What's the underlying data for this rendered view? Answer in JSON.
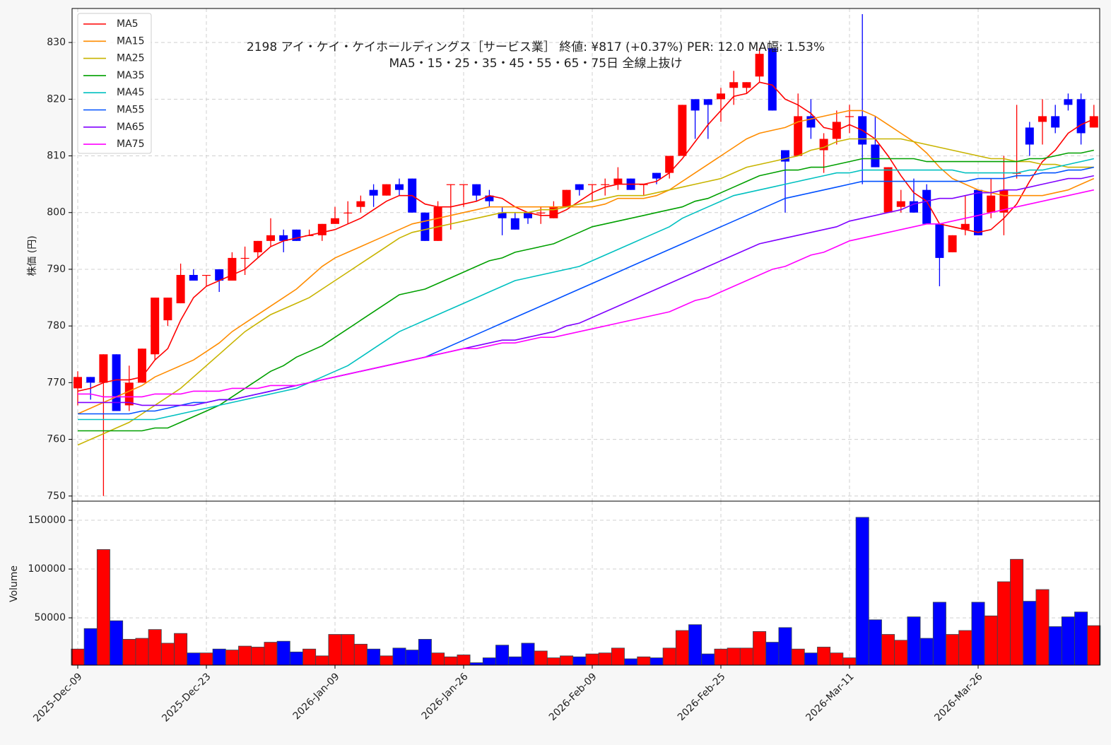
{
  "chart_data": [
    {
      "type": "candlestick",
      "title": "2198  アイ・ケイ・ケイホールディングス［サービス業］ 終値: ¥817 (+0.37%)  PER: 12.0  MA幅: 1.53%",
      "subtitle": "MA5・15・25・35・45・55・65・75日 全線上抜け",
      "y_label": "株価 (円)",
      "up_color": "#ff0000",
      "down_color": "#0000ff",
      "ylim": [
        749.1,
        836
      ],
      "yticks": [
        750,
        760,
        770,
        780,
        790,
        800,
        810,
        820,
        830
      ],
      "grid": true,
      "legend": "upper left",
      "open": [
        769,
        771,
        770,
        775,
        766,
        770,
        775,
        781,
        784,
        789,
        789,
        790,
        788,
        792,
        793,
        795,
        796,
        797,
        796,
        796,
        798,
        800,
        801,
        804,
        803,
        805,
        806,
        800,
        795,
        805,
        805,
        805,
        803,
        800,
        799,
        800,
        800,
        799,
        801,
        805,
        805,
        805,
        805,
        806,
        805,
        807,
        807,
        810,
        820,
        820,
        820,
        822,
        822,
        824,
        829,
        811,
        810,
        817,
        811,
        813,
        817,
        817,
        812,
        800,
        801,
        802,
        804,
        798,
        793,
        797,
        804,
        800,
        800,
        807,
        815,
        816,
        817,
        820,
        820,
        815
      ],
      "high": [
        772,
        771,
        775,
        775,
        773,
        776,
        785,
        785,
        791,
        790,
        789,
        790,
        793,
        794,
        795,
        799,
        797,
        797,
        797,
        798,
        801,
        802,
        803,
        805,
        805,
        806,
        806,
        800,
        802,
        805,
        805,
        805,
        804,
        801,
        800,
        800,
        801,
        802,
        804,
        805,
        805,
        806,
        808,
        806,
        805,
        807,
        810,
        819,
        820,
        820,
        822,
        825,
        823,
        829,
        829,
        811,
        821,
        820,
        814,
        818,
        819,
        835,
        817,
        808,
        804,
        806,
        805,
        798,
        796,
        803,
        804,
        806,
        810,
        819,
        816,
        820,
        819,
        821,
        821,
        819
      ],
      "low": [
        766,
        767,
        750,
        765,
        765,
        770,
        774,
        780,
        784,
        788,
        787,
        786,
        788,
        789,
        792,
        794,
        793,
        795,
        796,
        795,
        798,
        798,
        800,
        801,
        803,
        803,
        800,
        795,
        795,
        797,
        801,
        802,
        801,
        796,
        797,
        798,
        798,
        799,
        801,
        803,
        802,
        803,
        804,
        804,
        803,
        805,
        806,
        810,
        813,
        813,
        816,
        819,
        821,
        823,
        818,
        800,
        810,
        813,
        807,
        812,
        814,
        805,
        808,
        800,
        800,
        800,
        798,
        787,
        793,
        796,
        796,
        799,
        796,
        806,
        810,
        812,
        814,
        818,
        812,
        815
      ],
      "close": [
        771,
        770,
        775,
        765,
        770,
        776,
        785,
        785,
        789,
        788,
        789,
        788,
        792,
        792,
        795,
        796,
        795,
        795,
        796,
        798,
        799,
        800,
        802,
        803,
        805,
        804,
        800,
        795,
        801,
        805,
        805,
        803,
        802,
        799,
        797,
        799,
        800,
        801,
        804,
        804,
        805,
        805,
        806,
        804,
        805,
        806,
        810,
        819,
        818,
        819,
        821,
        823,
        823,
        828,
        818,
        809,
        817,
        815,
        813,
        816,
        817,
        812,
        808,
        808,
        802,
        800,
        798,
        792,
        796,
        798,
        796,
        803,
        804,
        807,
        812,
        817,
        815,
        819,
        814,
        817
      ],
      "series": [
        {
          "name": "MA5",
          "color": "#ff0000",
          "values": [
            768.5,
            769,
            770,
            770.5,
            770.5,
            771,
            774,
            776,
            781,
            785,
            787,
            788,
            789,
            790,
            792,
            794,
            795,
            795.5,
            796,
            796.5,
            797,
            798,
            799,
            800.5,
            802,
            803,
            803,
            801.5,
            801,
            801,
            801.5,
            802,
            803,
            802.5,
            801,
            800,
            799.5,
            799.5,
            800.5,
            802,
            803.5,
            804.5,
            805,
            805,
            805,
            805.5,
            807,
            809.5,
            812.5,
            815.5,
            818,
            820.5,
            821,
            823,
            822.5,
            820,
            819,
            817.5,
            815,
            814.5,
            815.5,
            814.5,
            813,
            810,
            806.5,
            803.5,
            802,
            798,
            797.5,
            797,
            796.5,
            797,
            799,
            801.5,
            805.5,
            809,
            811,
            814,
            815.5,
            816.5
          ]
        },
        {
          "name": "MA15",
          "color": "#ff8c00",
          "values": [
            764.5,
            765.5,
            766.5,
            767.5,
            768.5,
            769.5,
            771,
            772,
            773,
            774,
            775.5,
            777,
            779,
            780.5,
            782,
            783.5,
            785,
            786.5,
            788.5,
            790.5,
            792,
            793,
            794,
            795,
            796,
            797,
            798,
            798.5,
            799,
            799.5,
            800,
            800.5,
            801,
            801,
            801,
            801,
            801,
            801,
            801,
            801,
            801,
            801.5,
            802.5,
            802.5,
            802.5,
            803,
            804,
            805.5,
            807,
            808.5,
            810,
            811.5,
            813,
            814,
            814.5,
            815,
            816,
            816.5,
            817,
            817.5,
            818,
            818,
            817,
            815.5,
            814,
            812.5,
            810.5,
            808,
            806,
            805,
            804,
            803.5,
            803,
            803,
            803,
            803,
            803.5,
            804,
            805,
            806
          ]
        },
        {
          "name": "MA25",
          "color": "#c8b400",
          "values": [
            759,
            760,
            761,
            762,
            763,
            764.5,
            766,
            767.5,
            769,
            771,
            773,
            775,
            777,
            779,
            780.5,
            782,
            783,
            784,
            785,
            786.5,
            788,
            789.5,
            791,
            792.5,
            794,
            795.5,
            796.5,
            797,
            797.5,
            798,
            798.5,
            799,
            799.5,
            800,
            800,
            800,
            800.5,
            800.5,
            801,
            801.5,
            802,
            802.5,
            803,
            803,
            803,
            803.5,
            804,
            804.5,
            805,
            805.5,
            806,
            807,
            808,
            808.5,
            809,
            809.5,
            810,
            811,
            811.5,
            812.5,
            813,
            813,
            813,
            813,
            813,
            812.5,
            812,
            811.5,
            811,
            810.5,
            810,
            809.5,
            809.5,
            809,
            809,
            808.5,
            808.5,
            808,
            808,
            808
          ]
        },
        {
          "name": "MA35",
          "color": "#00a000",
          "values": [
            761.5,
            761.5,
            761.5,
            761.5,
            761.5,
            761.5,
            762,
            762,
            763,
            764,
            765,
            766,
            767.5,
            769,
            770.5,
            772,
            773,
            774.5,
            775.5,
            776.5,
            778,
            779.5,
            781,
            782.5,
            784,
            785.5,
            786,
            786.5,
            787.5,
            788.5,
            789.5,
            790.5,
            791.5,
            792,
            793,
            793.5,
            794,
            794.5,
            795.5,
            796.5,
            797.5,
            798,
            798.5,
            799,
            799.5,
            800,
            800.5,
            801,
            802,
            802.5,
            803.5,
            804.5,
            805.5,
            806.5,
            807,
            807.5,
            807.5,
            808,
            808,
            808.5,
            809,
            809.5,
            809.5,
            809.5,
            809.5,
            809.5,
            809,
            809,
            809,
            809,
            809,
            809,
            809,
            809,
            809.5,
            809.5,
            810,
            810.5,
            810.5,
            811
          ]
        },
        {
          "name": "MA45",
          "color": "#00c0c0",
          "values": [
            763.5,
            763.5,
            763.5,
            763.5,
            763.5,
            763.5,
            763.5,
            764,
            764.5,
            765,
            765.5,
            766,
            766.5,
            767,
            767.5,
            768,
            768.5,
            769,
            770,
            771,
            772,
            773,
            774.5,
            776,
            777.5,
            779,
            780,
            781,
            782,
            783,
            784,
            785,
            786,
            787,
            788,
            788.5,
            789,
            789.5,
            790,
            790.5,
            791.5,
            792.5,
            793.5,
            794.5,
            795.5,
            796.5,
            797.5,
            799,
            800,
            801,
            802,
            803,
            803.5,
            804,
            804.5,
            805,
            805.5,
            806,
            806.5,
            807,
            807,
            807.5,
            807.5,
            807.5,
            807.5,
            807.5,
            807.5,
            807.5,
            807.5,
            807,
            807,
            807,
            807,
            807,
            807.5,
            807.5,
            808,
            808.5,
            809,
            809.5
          ]
        },
        {
          "name": "MA55",
          "color": "#0050ff",
          "values": [
            764.5,
            764.5,
            764.5,
            764.5,
            764.5,
            765,
            765,
            765.5,
            766,
            766.5,
            766.5,
            767,
            767,
            767.5,
            768,
            768.5,
            769,
            769.5,
            770,
            770.5,
            771,
            771.5,
            772,
            772.5,
            773,
            773.5,
            774,
            774.5,
            775.5,
            776.5,
            777.5,
            778.5,
            779.5,
            780.5,
            781.5,
            782.5,
            783.5,
            784.5,
            785.5,
            786.5,
            787.5,
            788.5,
            789.5,
            790.5,
            791.5,
            792.5,
            793.5,
            794.5,
            795.5,
            796.5,
            797.5,
            798.5,
            799.5,
            800.5,
            801.5,
            802.5,
            803,
            803.5,
            804,
            804.5,
            805,
            805.5,
            805.5,
            805.5,
            805.5,
            805.5,
            805.5,
            805.5,
            805.5,
            805.5,
            806,
            806,
            806,
            806.5,
            806.5,
            807,
            807,
            807.5,
            807.5,
            808
          ]
        },
        {
          "name": "MA65",
          "color": "#8000ff",
          "values": [
            766.5,
            766.5,
            766.5,
            766.5,
            766.5,
            766,
            766,
            766,
            766,
            766,
            766.5,
            767,
            767,
            767.5,
            768,
            768.5,
            769,
            769.5,
            770,
            770.5,
            771,
            771.5,
            772,
            772.5,
            773,
            773.5,
            774,
            774.5,
            775,
            775.5,
            776,
            776.5,
            777,
            777.5,
            777.5,
            778,
            778.5,
            779,
            780,
            780.5,
            781.5,
            782.5,
            783.5,
            784.5,
            785.5,
            786.5,
            787.5,
            788.5,
            789.5,
            790.5,
            791.5,
            792.5,
            793.5,
            794.5,
            795,
            795.5,
            796,
            796.5,
            797,
            797.5,
            798.5,
            799,
            799.5,
            800,
            800.5,
            801.5,
            802,
            802.5,
            802.5,
            803,
            803.5,
            803.5,
            804,
            804,
            804.5,
            805,
            805.5,
            806,
            806,
            806.5
          ]
        },
        {
          "name": "MA75",
          "color": "#ff00ff",
          "values": [
            768,
            768,
            767.5,
            767.5,
            767.5,
            767.5,
            768,
            768,
            768,
            768.5,
            768.5,
            768.5,
            769,
            769,
            769,
            769.5,
            769.5,
            769.5,
            770,
            770.5,
            771,
            771.5,
            772,
            772.5,
            773,
            773.5,
            774,
            774.5,
            775,
            775.5,
            776,
            776,
            776.5,
            777,
            777,
            777.5,
            778,
            778,
            778.5,
            779,
            779.5,
            780,
            780.5,
            781,
            781.5,
            782,
            782.5,
            783.5,
            784.5,
            785,
            786,
            787,
            788,
            789,
            790,
            790.5,
            791.5,
            792.5,
            793,
            794,
            795,
            795.5,
            796,
            796.5,
            797,
            797.5,
            798,
            798,
            798.5,
            799,
            799.5,
            800,
            800.5,
            801,
            801.5,
            802,
            802.5,
            803,
            803.5,
            804
          ]
        }
      ]
    },
    {
      "type": "bar",
      "y_label": "Volume",
      "edge_color": "#37474f",
      "ylim": [
        1500,
        169600
      ],
      "yticks": [
        50000,
        100000,
        150000
      ],
      "grid": true,
      "categories": [
        "2025-Dec-09",
        null,
        null,
        null,
        null,
        null,
        null,
        null,
        null,
        null,
        "2025-Dec-23",
        null,
        null,
        null,
        null,
        null,
        null,
        null,
        null,
        null,
        "2026-Jan-09",
        null,
        null,
        null,
        null,
        null,
        null,
        null,
        null,
        null,
        "2026-Jan-26",
        null,
        null,
        null,
        null,
        null,
        null,
        null,
        null,
        null,
        "2026-Feb-09",
        null,
        null,
        null,
        null,
        null,
        null,
        null,
        null,
        null,
        "2026-Feb-25",
        null,
        null,
        null,
        null,
        null,
        null,
        null,
        null,
        null,
        "2026-Mar-11",
        null,
        null,
        null,
        null,
        null,
        null,
        null,
        null,
        null,
        "2026-Mar-26",
        null,
        null,
        null,
        null,
        null,
        null,
        null,
        null,
        null
      ],
      "values": [
        18000,
        39000,
        120000,
        47000,
        28000,
        29000,
        38000,
        24000,
        34000,
        14000,
        14000,
        18000,
        17000,
        21000,
        20000,
        25000,
        26000,
        15000,
        18000,
        11000,
        33000,
        33000,
        23000,
        18000,
        11000,
        19000,
        17000,
        28000,
        14000,
        10000,
        12000,
        4000,
        9000,
        22000,
        10000,
        24000,
        16000,
        9000,
        11000,
        10000,
        13000,
        14000,
        19000,
        8000,
        10000,
        9000,
        19000,
        37000,
        43000,
        13000,
        18000,
        19000,
        19000,
        36000,
        25000,
        40000,
        18000,
        14000,
        20000,
        14000,
        9000,
        153000,
        48000,
        33000,
        27000,
        51000,
        29000,
        66000,
        33000,
        37000,
        66000,
        52000,
        87000,
        110000,
        67000,
        79000,
        41000,
        51000,
        56000,
        42000
      ]
    }
  ]
}
